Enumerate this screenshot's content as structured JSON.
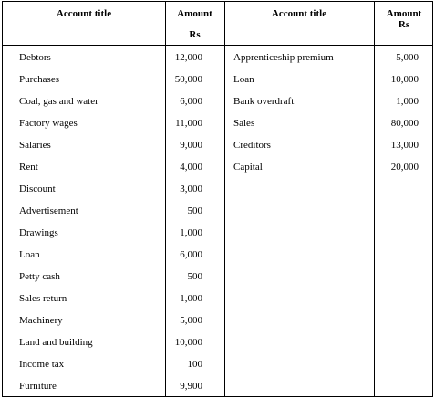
{
  "headers": {
    "left_title": "Account title",
    "left_amount": "Amount",
    "left_currency": "Rs",
    "right_title": "Account title",
    "right_amount": "Amount",
    "right_currency": "Rs"
  },
  "left_rows": [
    {
      "title": "Debtors",
      "amount": "12,000"
    },
    {
      "title": "Purchases",
      "amount": "50,000"
    },
    {
      "title": "Coal, gas and water",
      "amount": "6,000"
    },
    {
      "title": "Factory wages",
      "amount": "11,000"
    },
    {
      "title": "Salaries",
      "amount": "9,000"
    },
    {
      "title": "Rent",
      "amount": "4,000"
    },
    {
      "title": "Discount",
      "amount": "3,000"
    },
    {
      "title": "Advertisement",
      "amount": "500"
    },
    {
      "title": "Drawings",
      "amount": "1,000"
    },
    {
      "title": "Loan",
      "amount": "6,000"
    },
    {
      "title": "Petty cash",
      "amount": "500"
    },
    {
      "title": "Sales return",
      "amount": "1,000"
    },
    {
      "title": "Machinery",
      "amount": "5,000"
    },
    {
      "title": "Land and building",
      "amount": "10,000"
    },
    {
      "title": "Income tax",
      "amount": "100"
    },
    {
      "title": "Furniture",
      "amount": "9,900"
    }
  ],
  "right_rows": [
    {
      "title": "Apprenticeship premium",
      "amount": "5,000"
    },
    {
      "title": "Loan",
      "amount": "10,000"
    },
    {
      "title": "Bank overdraft",
      "amount": "1,000"
    },
    {
      "title": "Sales",
      "amount": "80,000"
    },
    {
      "title": "Creditors",
      "amount": "13,000"
    },
    {
      "title": "Capital",
      "amount": "20,000"
    }
  ]
}
